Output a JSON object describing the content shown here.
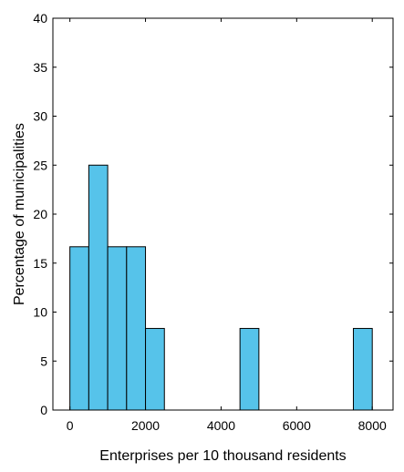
{
  "chart_data": {
    "type": "bar",
    "xlabel": "Enterprises per 10 thousand residents",
    "ylabel": "Percentage of municipalities",
    "xlim": [
      -450,
      8550
    ],
    "ylim": [
      0,
      40
    ],
    "x_ticks": [
      0,
      2000,
      4000,
      6000,
      8000
    ],
    "y_ticks": [
      0,
      5,
      10,
      15,
      20,
      25,
      30,
      35,
      40
    ],
    "bin_width": 500,
    "bins": [
      {
        "start": 0,
        "end": 500,
        "value": 16.67
      },
      {
        "start": 500,
        "end": 1000,
        "value": 25.0
      },
      {
        "start": 1000,
        "end": 1500,
        "value": 16.67
      },
      {
        "start": 1500,
        "end": 2000,
        "value": 16.67
      },
      {
        "start": 2000,
        "end": 2500,
        "value": 8.33
      },
      {
        "start": 4500,
        "end": 5000,
        "value": 8.33
      },
      {
        "start": 7500,
        "end": 8000,
        "value": 8.33
      }
    ],
    "bar_color": "#56c3ea",
    "edge_color": "#000000",
    "grid": false,
    "legend": "none"
  }
}
